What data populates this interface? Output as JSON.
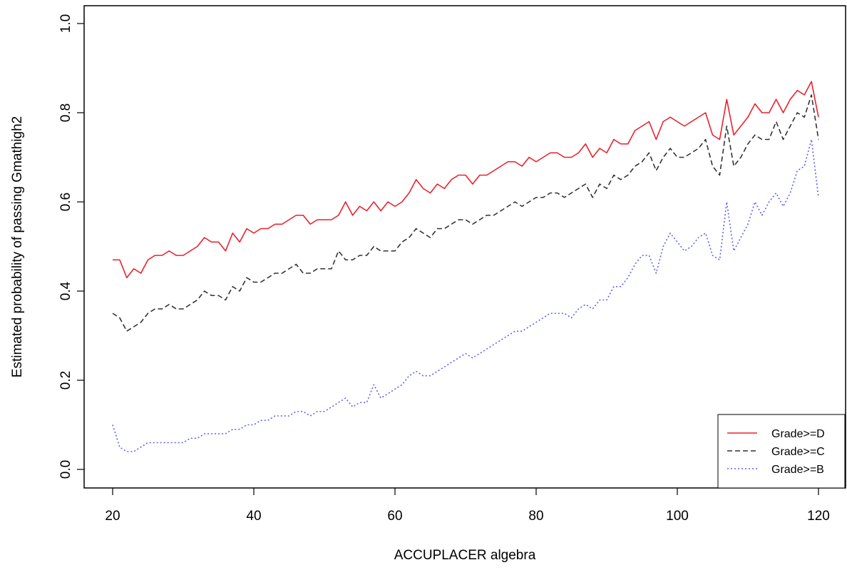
{
  "chart_data": {
    "type": "line",
    "title": "",
    "xlabel": "ACCUPLACER algebra",
    "ylabel": "Estimated probability of passing Gmathigh2",
    "xlim": [
      20,
      120
    ],
    "ylim": [
      0,
      1
    ],
    "xticks": [
      20,
      40,
      60,
      80,
      100,
      120
    ],
    "yticks": [
      0.0,
      0.2,
      0.4,
      0.6,
      0.8,
      1.0
    ],
    "ytick_labels": [
      "0.0",
      "0.2",
      "0.4",
      "0.6",
      "0.8",
      "1.0"
    ],
    "grid": false,
    "legend_position": "bottom-right",
    "x": [
      20,
      21,
      22,
      23,
      24,
      25,
      26,
      27,
      28,
      29,
      30,
      31,
      32,
      33,
      34,
      35,
      36,
      37,
      38,
      39,
      40,
      41,
      42,
      43,
      44,
      45,
      46,
      47,
      48,
      49,
      50,
      51,
      52,
      53,
      54,
      55,
      56,
      57,
      58,
      59,
      60,
      61,
      62,
      63,
      64,
      65,
      66,
      67,
      68,
      69,
      70,
      71,
      72,
      73,
      74,
      75,
      76,
      77,
      78,
      79,
      80,
      81,
      82,
      83,
      84,
      85,
      86,
      87,
      88,
      89,
      90,
      91,
      92,
      93,
      94,
      95,
      96,
      97,
      98,
      99,
      100,
      101,
      102,
      103,
      104,
      105,
      106,
      107,
      108,
      109,
      110,
      111,
      112,
      113,
      114,
      115,
      116,
      117,
      118,
      119,
      120
    ],
    "series": [
      {
        "name": "Grade>=D",
        "color": "#e8222c",
        "dash": "solid",
        "values": [
          0.47,
          0.47,
          0.43,
          0.45,
          0.44,
          0.47,
          0.48,
          0.48,
          0.49,
          0.48,
          0.48,
          0.49,
          0.5,
          0.52,
          0.51,
          0.51,
          0.49,
          0.53,
          0.51,
          0.54,
          0.53,
          0.54,
          0.54,
          0.55,
          0.55,
          0.56,
          0.57,
          0.57,
          0.55,
          0.56,
          0.56,
          0.56,
          0.57,
          0.6,
          0.57,
          0.59,
          0.58,
          0.6,
          0.58,
          0.6,
          0.59,
          0.6,
          0.62,
          0.65,
          0.63,
          0.62,
          0.64,
          0.63,
          0.65,
          0.66,
          0.66,
          0.64,
          0.66,
          0.66,
          0.67,
          0.68,
          0.69,
          0.69,
          0.68,
          0.7,
          0.69,
          0.7,
          0.71,
          0.71,
          0.7,
          0.7,
          0.71,
          0.73,
          0.7,
          0.72,
          0.71,
          0.74,
          0.73,
          0.73,
          0.76,
          0.77,
          0.78,
          0.74,
          0.78,
          0.79,
          0.78,
          0.77,
          0.78,
          0.79,
          0.8,
          0.75,
          0.74,
          0.83,
          0.75,
          0.77,
          0.79,
          0.82,
          0.8,
          0.8,
          0.83,
          0.8,
          0.83,
          0.85,
          0.84,
          0.87,
          0.79
        ]
      },
      {
        "name": "Grade>=C",
        "color": "#333333",
        "dash": "dashed",
        "values": [
          0.35,
          0.34,
          0.31,
          0.32,
          0.33,
          0.35,
          0.36,
          0.36,
          0.37,
          0.36,
          0.36,
          0.37,
          0.38,
          0.4,
          0.39,
          0.39,
          0.38,
          0.41,
          0.4,
          0.43,
          0.42,
          0.42,
          0.43,
          0.44,
          0.44,
          0.45,
          0.46,
          0.44,
          0.44,
          0.45,
          0.45,
          0.45,
          0.49,
          0.47,
          0.47,
          0.48,
          0.48,
          0.5,
          0.49,
          0.49,
          0.49,
          0.51,
          0.52,
          0.54,
          0.53,
          0.52,
          0.54,
          0.54,
          0.55,
          0.56,
          0.56,
          0.55,
          0.56,
          0.57,
          0.57,
          0.58,
          0.59,
          0.6,
          0.59,
          0.6,
          0.61,
          0.61,
          0.62,
          0.62,
          0.61,
          0.62,
          0.63,
          0.64,
          0.61,
          0.64,
          0.63,
          0.66,
          0.65,
          0.66,
          0.68,
          0.69,
          0.71,
          0.67,
          0.7,
          0.72,
          0.7,
          0.7,
          0.71,
          0.72,
          0.74,
          0.68,
          0.66,
          0.77,
          0.68,
          0.7,
          0.73,
          0.75,
          0.74,
          0.74,
          0.78,
          0.74,
          0.77,
          0.8,
          0.79,
          0.84,
          0.74
        ]
      },
      {
        "name": "Grade>=B",
        "color": "#5f5ff5",
        "dash": "dotted",
        "values": [
          0.1,
          0.05,
          0.04,
          0.04,
          0.05,
          0.06,
          0.06,
          0.06,
          0.06,
          0.06,
          0.06,
          0.07,
          0.07,
          0.08,
          0.08,
          0.08,
          0.08,
          0.09,
          0.09,
          0.1,
          0.1,
          0.11,
          0.11,
          0.12,
          0.12,
          0.12,
          0.13,
          0.13,
          0.12,
          0.13,
          0.13,
          0.14,
          0.15,
          0.16,
          0.14,
          0.15,
          0.15,
          0.19,
          0.16,
          0.17,
          0.18,
          0.19,
          0.21,
          0.22,
          0.21,
          0.21,
          0.22,
          0.23,
          0.24,
          0.25,
          0.26,
          0.25,
          0.26,
          0.27,
          0.28,
          0.29,
          0.3,
          0.31,
          0.31,
          0.32,
          0.33,
          0.34,
          0.35,
          0.35,
          0.35,
          0.34,
          0.36,
          0.37,
          0.36,
          0.38,
          0.38,
          0.41,
          0.41,
          0.43,
          0.46,
          0.48,
          0.48,
          0.44,
          0.5,
          0.53,
          0.51,
          0.49,
          0.5,
          0.52,
          0.53,
          0.48,
          0.47,
          0.6,
          0.49,
          0.52,
          0.55,
          0.6,
          0.57,
          0.6,
          0.62,
          0.59,
          0.62,
          0.67,
          0.68,
          0.74,
          0.61
        ]
      }
    ]
  }
}
